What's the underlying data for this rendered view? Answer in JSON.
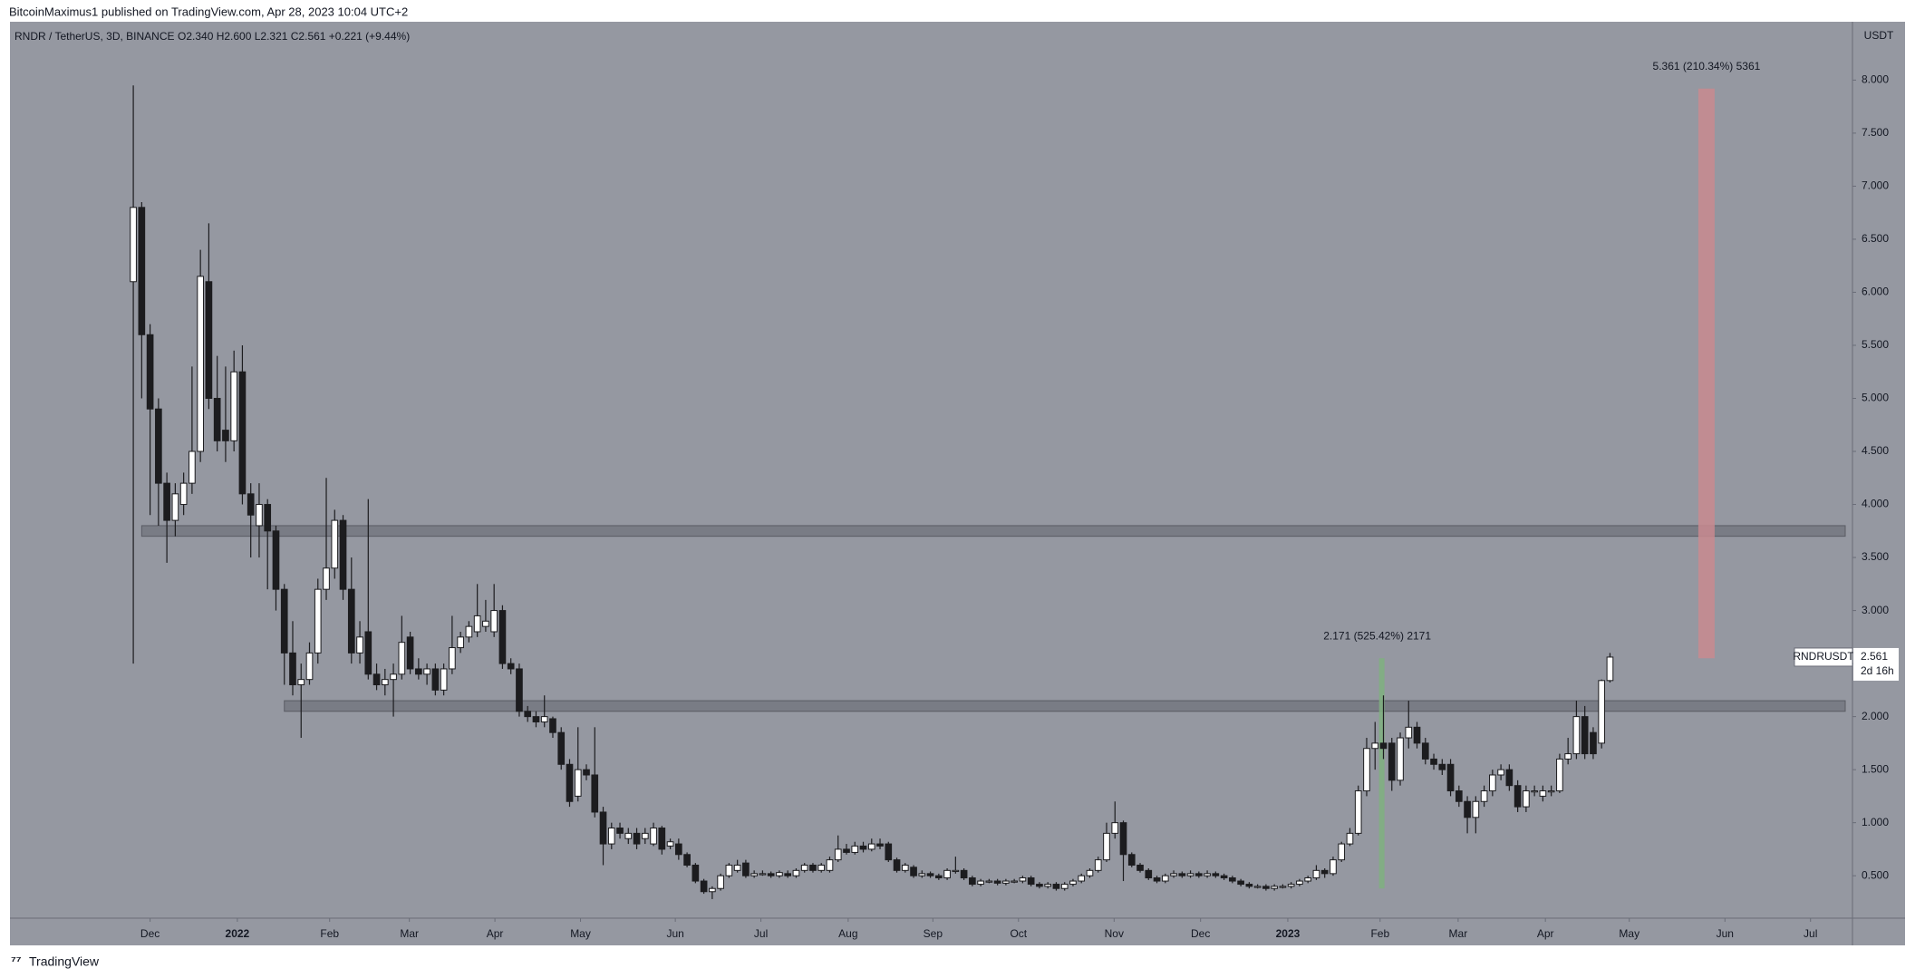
{
  "header": {
    "publisher": "BitcoinMaximus1 published on TradingView.com, Apr 28, 2023 10:04 UTC+2",
    "footer": "TradingView"
  },
  "chart_data": {
    "type": "candlestick",
    "title": "RNDR / TetherUS, 3D, BINANCE",
    "ohlc_header": "O2.340 H2.600 L2.321 C2.561 +0.221 (+9.44%)",
    "y_unit": "USDT",
    "symbol_label": "RNDRUSDT",
    "countdown_label": "2d 16h",
    "up_color": "#ffffff",
    "down_color": "#1c1c1f",
    "background": "#9598a1",
    "xlim": [
      -14.7,
      204.9
    ],
    "xticks": [
      {
        "value": 2.0,
        "label": "Dec"
      },
      {
        "value": 12.4,
        "label": "2022"
      },
      {
        "value": 23.4,
        "label": "Feb"
      },
      {
        "value": 32.9,
        "label": "Mar"
      },
      {
        "value": 43.1,
        "label": "Apr"
      },
      {
        "value": 53.3,
        "label": "May"
      },
      {
        "value": 64.6,
        "label": "Jun"
      },
      {
        "value": 74.8,
        "label": "Jul"
      },
      {
        "value": 85.2,
        "label": "Aug"
      },
      {
        "value": 95.3,
        "label": "Sep"
      },
      {
        "value": 105.5,
        "label": "Oct"
      },
      {
        "value": 116.9,
        "label": "Nov"
      },
      {
        "value": 127.2,
        "label": "Dec"
      },
      {
        "value": 137.6,
        "label": "2023"
      },
      {
        "value": 148.6,
        "label": "Feb"
      },
      {
        "value": 157.9,
        "label": "Mar"
      },
      {
        "value": 168.3,
        "label": "Apr"
      },
      {
        "value": 178.3,
        "label": "May"
      },
      {
        "value": 189.7,
        "label": "Jun"
      },
      {
        "value": 199.9,
        "label": "Jul"
      }
    ],
    "ylim": [
      0.1,
      8.55
    ],
    "yticks": [
      {
        "value": 0.5,
        "label": "0.500"
      },
      {
        "value": 1,
        "label": "1.000"
      },
      {
        "value": 1.5,
        "label": "1.500"
      },
      {
        "value": 2,
        "label": "2.000"
      },
      {
        "value": 2.5,
        "label": "2.500"
      },
      {
        "value": 3,
        "label": "3.000"
      },
      {
        "value": 3.5,
        "label": "3.500"
      },
      {
        "value": 4,
        "label": "4.000"
      },
      {
        "value": 4.5,
        "label": "4.500"
      },
      {
        "value": 5,
        "label": "5.000"
      },
      {
        "value": 5.5,
        "label": "5.500"
      },
      {
        "value": 6,
        "label": "6.000"
      },
      {
        "value": 6.5,
        "label": "6.500"
      },
      {
        "value": 7,
        "label": "7.000"
      },
      {
        "value": 7.5,
        "label": "7.500"
      },
      {
        "value": 8,
        "label": "8.000"
      }
    ],
    "zones": [
      {
        "low": 3.7,
        "high": 3.8,
        "from": 1
      },
      {
        "low": 2.05,
        "high": 2.15,
        "from": 18
      }
    ],
    "measures": [
      {
        "label": "5.361 (210.34%) 5361",
        "top": 7.92,
        "bottom": 2.55,
        "x": 187.5,
        "color": "#c98a8f"
      },
      {
        "label": "2.171 (525.42%) 2171",
        "top": 2.55,
        "bottom": 0.38,
        "x": 148.8,
        "color": "#7fb07f"
      }
    ],
    "candles": [
      [
        6.1,
        7.95,
        2.5,
        6.8
      ],
      [
        6.8,
        6.85,
        5.0,
        5.6
      ],
      [
        5.6,
        5.7,
        3.9,
        4.9
      ],
      [
        4.9,
        5.0,
        3.8,
        4.2
      ],
      [
        4.2,
        4.3,
        3.45,
        3.85
      ],
      [
        3.85,
        4.2,
        3.7,
        4.1
      ],
      [
        4.0,
        4.3,
        3.9,
        4.2
      ],
      [
        4.2,
        5.3,
        4.1,
        4.5
      ],
      [
        4.5,
        6.4,
        4.4,
        6.15
      ],
      [
        6.1,
        6.65,
        4.9,
        5.0
      ],
      [
        5.0,
        5.4,
        4.5,
        4.6
      ],
      [
        4.7,
        5.3,
        4.4,
        4.6
      ],
      [
        4.6,
        5.45,
        4.5,
        5.25
      ],
      [
        5.25,
        5.5,
        4.0,
        4.1
      ],
      [
        4.1,
        4.2,
        3.5,
        3.9
      ],
      [
        3.8,
        4.2,
        3.5,
        4.0
      ],
      [
        4.0,
        4.05,
        3.2,
        3.75
      ],
      [
        3.75,
        3.8,
        3.0,
        3.2
      ],
      [
        3.2,
        3.25,
        2.3,
        2.6
      ],
      [
        2.6,
        2.9,
        2.2,
        2.3
      ],
      [
        2.3,
        2.5,
        1.8,
        2.35
      ],
      [
        2.35,
        2.7,
        2.3,
        2.6
      ],
      [
        2.6,
        3.3,
        2.5,
        3.2
      ],
      [
        3.2,
        4.25,
        3.1,
        3.4
      ],
      [
        3.4,
        3.95,
        3.3,
        3.85
      ],
      [
        3.85,
        3.9,
        3.1,
        3.2
      ],
      [
        3.2,
        3.5,
        2.5,
        2.6
      ],
      [
        2.6,
        2.9,
        2.5,
        2.75
      ],
      [
        2.8,
        4.05,
        2.35,
        2.4
      ],
      [
        2.4,
        2.5,
        2.25,
        2.3
      ],
      [
        2.3,
        2.45,
        2.2,
        2.35
      ],
      [
        2.35,
        2.5,
        2.0,
        2.4
      ],
      [
        2.4,
        2.95,
        2.35,
        2.7
      ],
      [
        2.75,
        2.8,
        2.4,
        2.45
      ],
      [
        2.45,
        2.55,
        2.35,
        2.4
      ],
      [
        2.4,
        2.5,
        2.3,
        2.45
      ],
      [
        2.45,
        2.5,
        2.2,
        2.25
      ],
      [
        2.25,
        2.5,
        2.2,
        2.45
      ],
      [
        2.45,
        2.95,
        2.4,
        2.65
      ],
      [
        2.65,
        2.8,
        2.6,
        2.75
      ],
      [
        2.75,
        2.9,
        2.7,
        2.85
      ],
      [
        2.8,
        3.25,
        2.75,
        2.95
      ],
      [
        2.85,
        3.1,
        2.8,
        2.9
      ],
      [
        2.8,
        3.25,
        2.75,
        3.0
      ],
      [
        3.0,
        3.05,
        2.45,
        2.5
      ],
      [
        2.5,
        2.55,
        2.4,
        2.45
      ],
      [
        2.45,
        2.5,
        2.0,
        2.05
      ],
      [
        2.05,
        2.1,
        1.95,
        2.0
      ],
      [
        2.0,
        2.05,
        1.9,
        1.95
      ],
      [
        1.95,
        2.2,
        1.9,
        2.0
      ],
      [
        1.98,
        2.0,
        1.8,
        1.85
      ],
      [
        1.85,
        1.9,
        1.5,
        1.55
      ],
      [
        1.55,
        1.6,
        1.15,
        1.2
      ],
      [
        1.25,
        1.9,
        1.2,
        1.5
      ],
      [
        1.5,
        1.55,
        1.4,
        1.45
      ],
      [
        1.45,
        1.9,
        1.05,
        1.1
      ],
      [
        1.1,
        1.15,
        0.6,
        0.8
      ],
      [
        0.8,
        1.0,
        0.75,
        0.95
      ],
      [
        0.95,
        1.0,
        0.85,
        0.9
      ],
      [
        0.85,
        0.95,
        0.8,
        0.9
      ],
      [
        0.9,
        0.95,
        0.75,
        0.8
      ],
      [
        0.85,
        0.95,
        0.8,
        0.9
      ],
      [
        0.8,
        1.0,
        0.78,
        0.95
      ],
      [
        0.95,
        0.97,
        0.7,
        0.75
      ],
      [
        0.78,
        0.85,
        0.75,
        0.82
      ],
      [
        0.8,
        0.85,
        0.65,
        0.7
      ],
      [
        0.7,
        0.72,
        0.58,
        0.6
      ],
      [
        0.6,
        0.62,
        0.43,
        0.45
      ],
      [
        0.45,
        0.47,
        0.33,
        0.35
      ],
      [
        0.35,
        0.4,
        0.28,
        0.38
      ],
      [
        0.38,
        0.52,
        0.36,
        0.5
      ],
      [
        0.5,
        0.62,
        0.48,
        0.6
      ],
      [
        0.55,
        0.65,
        0.53,
        0.6
      ],
      [
        0.62,
        0.65,
        0.48,
        0.5
      ],
      [
        0.5,
        0.55,
        0.48,
        0.52
      ],
      [
        0.52,
        0.55,
        0.5,
        0.52
      ],
      [
        0.52,
        0.54,
        0.48,
        0.5
      ],
      [
        0.5,
        0.55,
        0.48,
        0.53
      ],
      [
        0.52,
        0.55,
        0.48,
        0.5
      ],
      [
        0.5,
        0.57,
        0.48,
        0.55
      ],
      [
        0.55,
        0.62,
        0.53,
        0.6
      ],
      [
        0.6,
        0.62,
        0.53,
        0.55
      ],
      [
        0.55,
        0.62,
        0.53,
        0.6
      ],
      [
        0.55,
        0.68,
        0.53,
        0.65
      ],
      [
        0.65,
        0.88,
        0.63,
        0.75
      ],
      [
        0.75,
        0.8,
        0.7,
        0.72
      ],
      [
        0.72,
        0.82,
        0.7,
        0.78
      ],
      [
        0.78,
        0.82,
        0.72,
        0.75
      ],
      [
        0.75,
        0.85,
        0.73,
        0.8
      ],
      [
        0.8,
        0.85,
        0.75,
        0.78
      ],
      [
        0.8,
        0.82,
        0.63,
        0.65
      ],
      [
        0.65,
        0.67,
        0.53,
        0.55
      ],
      [
        0.55,
        0.62,
        0.53,
        0.6
      ],
      [
        0.58,
        0.6,
        0.48,
        0.5
      ],
      [
        0.5,
        0.55,
        0.48,
        0.52
      ],
      [
        0.52,
        0.54,
        0.48,
        0.5
      ],
      [
        0.5,
        0.52,
        0.46,
        0.48
      ],
      [
        0.48,
        0.57,
        0.46,
        0.55
      ],
      [
        0.55,
        0.68,
        0.52,
        0.55
      ],
      [
        0.55,
        0.57,
        0.46,
        0.48
      ],
      [
        0.48,
        0.5,
        0.4,
        0.42
      ],
      [
        0.42,
        0.47,
        0.4,
        0.45
      ],
      [
        0.45,
        0.47,
        0.43,
        0.45
      ],
      [
        0.45,
        0.47,
        0.41,
        0.43
      ],
      [
        0.43,
        0.47,
        0.41,
        0.45
      ],
      [
        0.45,
        0.47,
        0.43,
        0.45
      ],
      [
        0.45,
        0.5,
        0.43,
        0.48
      ],
      [
        0.48,
        0.5,
        0.4,
        0.42
      ],
      [
        0.42,
        0.44,
        0.38,
        0.4
      ],
      [
        0.4,
        0.44,
        0.38,
        0.42
      ],
      [
        0.42,
        0.44,
        0.36,
        0.38
      ],
      [
        0.38,
        0.44,
        0.36,
        0.42
      ],
      [
        0.42,
        0.47,
        0.4,
        0.45
      ],
      [
        0.45,
        0.52,
        0.43,
        0.5
      ],
      [
        0.5,
        0.57,
        0.48,
        0.55
      ],
      [
        0.55,
        0.68,
        0.53,
        0.65
      ],
      [
        0.65,
        1.0,
        0.63,
        0.9
      ],
      [
        0.9,
        1.2,
        0.85,
        1.0
      ],
      [
        1.0,
        1.02,
        0.45,
        0.7
      ],
      [
        0.7,
        0.72,
        0.58,
        0.6
      ],
      [
        0.6,
        0.62,
        0.53,
        0.55
      ],
      [
        0.55,
        0.57,
        0.46,
        0.48
      ],
      [
        0.48,
        0.5,
        0.43,
        0.45
      ],
      [
        0.45,
        0.52,
        0.43,
        0.5
      ],
      [
        0.5,
        0.55,
        0.48,
        0.52
      ],
      [
        0.52,
        0.54,
        0.48,
        0.5
      ],
      [
        0.5,
        0.55,
        0.48,
        0.52
      ],
      [
        0.52,
        0.54,
        0.48,
        0.5
      ],
      [
        0.5,
        0.55,
        0.48,
        0.52
      ],
      [
        0.52,
        0.54,
        0.48,
        0.5
      ],
      [
        0.5,
        0.52,
        0.46,
        0.48
      ],
      [
        0.48,
        0.5,
        0.43,
        0.45
      ],
      [
        0.45,
        0.47,
        0.4,
        0.42
      ],
      [
        0.42,
        0.44,
        0.38,
        0.4
      ],
      [
        0.4,
        0.42,
        0.38,
        0.4
      ],
      [
        0.4,
        0.42,
        0.36,
        0.38
      ],
      [
        0.38,
        0.42,
        0.36,
        0.4
      ],
      [
        0.4,
        0.42,
        0.38,
        0.4
      ],
      [
        0.4,
        0.44,
        0.38,
        0.42
      ],
      [
        0.42,
        0.47,
        0.4,
        0.45
      ],
      [
        0.45,
        0.5,
        0.43,
        0.48
      ],
      [
        0.48,
        0.6,
        0.46,
        0.55
      ],
      [
        0.55,
        0.57,
        0.48,
        0.52
      ],
      [
        0.52,
        0.68,
        0.5,
        0.65
      ],
      [
        0.65,
        0.82,
        0.63,
        0.8
      ],
      [
        0.8,
        0.95,
        0.78,
        0.9
      ],
      [
        0.9,
        1.35,
        0.88,
        1.3
      ],
      [
        1.3,
        1.8,
        1.25,
        1.7
      ],
      [
        1.7,
        1.95,
        1.5,
        1.75
      ],
      [
        1.75,
        2.2,
        1.6,
        1.7
      ],
      [
        1.75,
        1.8,
        1.3,
        1.4
      ],
      [
        1.4,
        1.85,
        1.35,
        1.8
      ],
      [
        1.8,
        2.15,
        1.7,
        1.9
      ],
      [
        1.9,
        1.95,
        1.7,
        1.75
      ],
      [
        1.75,
        1.8,
        1.55,
        1.6
      ],
      [
        1.6,
        1.65,
        1.5,
        1.55
      ],
      [
        1.55,
        1.6,
        1.45,
        1.5
      ],
      [
        1.55,
        1.6,
        1.25,
        1.3
      ],
      [
        1.3,
        1.35,
        1.15,
        1.2
      ],
      [
        1.2,
        1.25,
        0.9,
        1.05
      ],
      [
        1.05,
        1.25,
        0.9,
        1.2
      ],
      [
        1.2,
        1.35,
        1.15,
        1.3
      ],
      [
        1.3,
        1.5,
        1.25,
        1.45
      ],
      [
        1.45,
        1.55,
        1.4,
        1.5
      ],
      [
        1.5,
        1.55,
        1.3,
        1.35
      ],
      [
        1.35,
        1.4,
        1.1,
        1.15
      ],
      [
        1.15,
        1.35,
        1.1,
        1.3
      ],
      [
        1.3,
        1.35,
        1.25,
        1.3
      ],
      [
        1.25,
        1.35,
        1.2,
        1.3
      ],
      [
        1.3,
        1.35,
        1.25,
        1.3
      ],
      [
        1.3,
        1.65,
        1.28,
        1.6
      ],
      [
        1.6,
        1.8,
        1.55,
        1.65
      ],
      [
        1.65,
        2.15,
        1.6,
        2.0
      ],
      [
        2.0,
        2.1,
        1.6,
        1.65
      ],
      [
        1.85,
        1.9,
        1.6,
        1.65
      ],
      [
        1.75,
        2.35,
        1.7,
        2.34
      ],
      [
        2.34,
        2.6,
        2.321,
        2.561
      ]
    ]
  }
}
